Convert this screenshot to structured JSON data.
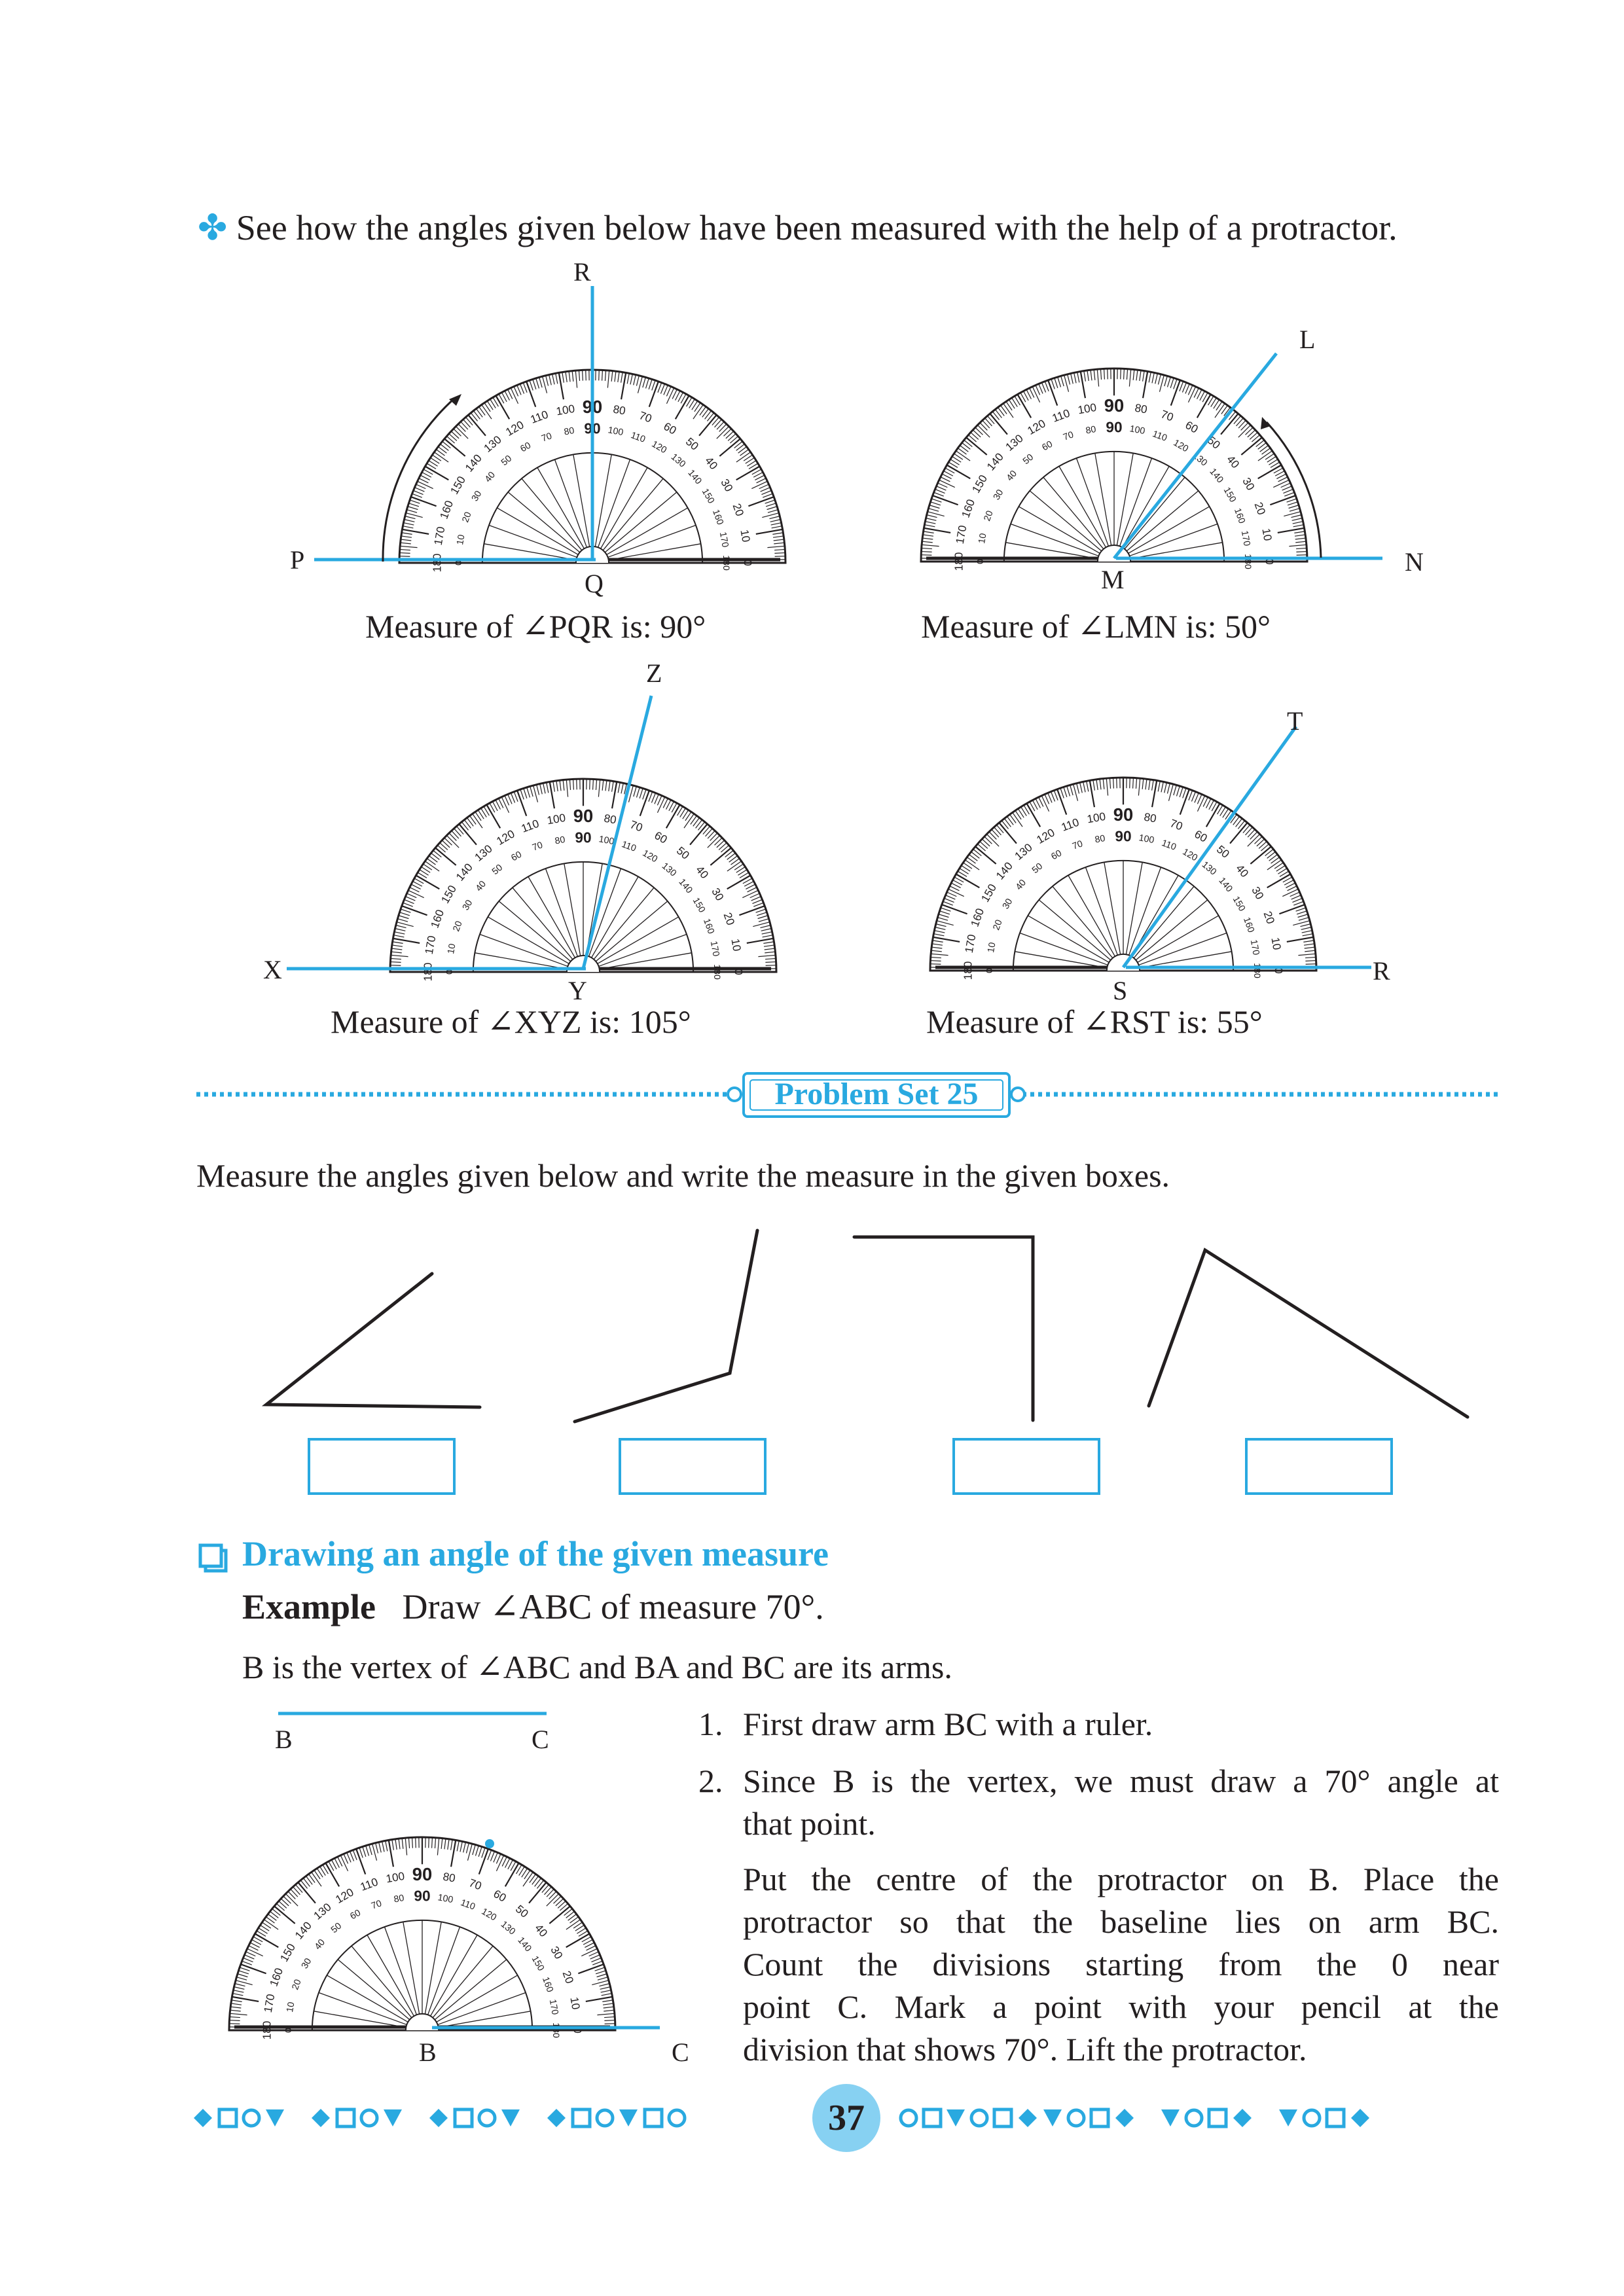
{
  "intro": {
    "bullet": "✤",
    "text": "See how the angles given below have been measured with the help of a protractor."
  },
  "examples": [
    {
      "id": "pqr",
      "caption": "Measure of ∠PQR is: 90°",
      "left": "P",
      "vertex": "Q",
      "arm": "R",
      "angle": 90
    },
    {
      "id": "lmn",
      "caption": "Measure of ∠LMN is: 50°",
      "left": "M",
      "vertex": "M",
      "arm": "L",
      "right": "N",
      "angle": 50
    },
    {
      "id": "xyz",
      "caption": "Measure of ∠XYZ is: 105°",
      "left": "X",
      "vertex": "Y",
      "arm": "Z",
      "angle": 105
    },
    {
      "id": "rst",
      "caption": "Measure of ∠RST is: 55°",
      "vertex": "S",
      "arm": "T",
      "right": "R",
      "angle": 55
    }
  ],
  "problem_set": {
    "title": "Problem Set 25",
    "instruction": "Measure the angles given below and write the measure in the given boxes."
  },
  "drawing": {
    "heading": "Drawing an angle of the given measure",
    "example_label": "Example",
    "example_text": "Draw ∠ABC of measure 70°.",
    "vertex_text": "B is the vertex of ∠ABC and BA and BC are its arms.",
    "labels": {
      "B": "B",
      "C": "C"
    },
    "steps": [
      {
        "num": "1.",
        "text": "First draw arm BC with a ruler."
      },
      {
        "num": "2.",
        "line1": "Since B is the vertex, we must draw a 70° angle at",
        "line2": "that point."
      }
    ],
    "para_lines": [
      "Put the centre of the protractor on B. Place the",
      "protractor so that the baseline lies on arm BC.",
      "Count the divisions starting from the 0 near",
      "point C. Mark a point with your pencil at the",
      "division that shows 70°. Lift the protractor."
    ]
  },
  "footer": {
    "page_number": "37"
  },
  "colors": {
    "accent": "#29a9e0",
    "text": "#231f20"
  }
}
